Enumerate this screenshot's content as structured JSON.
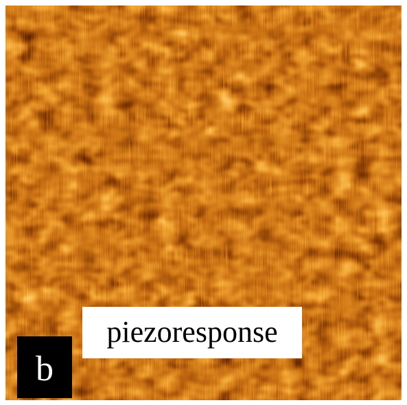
{
  "panel_label": "b",
  "caption": "piezoresponse"
}
